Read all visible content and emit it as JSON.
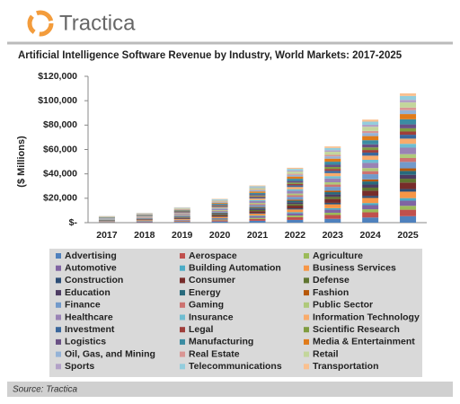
{
  "logo": "Tractica",
  "source": "Source: Tractica",
  "chart_data": {
    "type": "stacked-bar",
    "title": "Artificial Intelligence Software Revenue by Industry, World Markets: 2017-2025",
    "y_label": "($ Millions)",
    "categories": [
      "2017",
      "2018",
      "2019",
      "2020",
      "2021",
      "2022",
      "2023",
      "2024",
      "2025"
    ],
    "ylim": [
      0,
      120000
    ],
    "yticks": [
      {
        "value": 0,
        "label": "$-"
      },
      {
        "value": 20000,
        "label": "$20,000"
      },
      {
        "value": 40000,
        "label": "$40,000"
      },
      {
        "value": 60000,
        "label": "$60,000"
      },
      {
        "value": 80000,
        "label": "$80,000"
      },
      {
        "value": 100000,
        "label": "$100,000"
      },
      {
        "value": 120000,
        "label": "$120,000"
      }
    ],
    "series": [
      {
        "name": "Advertising",
        "color": "#4f81bd",
        "values": [
          275,
          405,
          630,
          975,
          1525,
          2250,
          3125,
          4225,
          5300
        ]
      },
      {
        "name": "Aerospace",
        "color": "#c0504d",
        "values": [
          275,
          405,
          630,
          975,
          1525,
          2250,
          3125,
          4225,
          5300
        ]
      },
      {
        "name": "Agriculture",
        "color": "#9bbb59",
        "values": [
          165,
          243,
          378,
          585,
          915,
          1350,
          1875,
          2535,
          3180
        ]
      },
      {
        "name": "Automotive",
        "color": "#8064a2",
        "values": [
          220,
          324,
          504,
          780,
          1220,
          1800,
          2500,
          3380,
          4240
        ]
      },
      {
        "name": "Building Automation",
        "color": "#4bacc6",
        "values": [
          110,
          162,
          252,
          390,
          610,
          900,
          1250,
          1690,
          2120
        ]
      },
      {
        "name": "Business Services",
        "color": "#f79646",
        "values": [
          275,
          405,
          630,
          975,
          1525,
          2250,
          3125,
          4225,
          5300
        ]
      },
      {
        "name": "Construction",
        "color": "#2c4d75",
        "values": [
          110,
          162,
          252,
          390,
          610,
          900,
          1250,
          1690,
          2120
        ]
      },
      {
        "name": "Consumer",
        "color": "#772c2a",
        "values": [
          275,
          405,
          630,
          975,
          1525,
          2250,
          3125,
          4225,
          5300
        ]
      },
      {
        "name": "Defense",
        "color": "#5f7530",
        "values": [
          165,
          243,
          378,
          585,
          915,
          1350,
          1875,
          2535,
          3180
        ]
      },
      {
        "name": "Education",
        "color": "#4d3b62",
        "values": [
          165,
          243,
          378,
          585,
          915,
          1350,
          1875,
          2535,
          3180
        ]
      },
      {
        "name": "Energy",
        "color": "#276a7c",
        "values": [
          165,
          243,
          378,
          585,
          915,
          1350,
          1875,
          2535,
          3180
        ]
      },
      {
        "name": "Fashion",
        "color": "#b65708",
        "values": [
          110,
          162,
          252,
          390,
          610,
          900,
          1250,
          1690,
          2120
        ]
      },
      {
        "name": "Finance",
        "color": "#729aca",
        "values": [
          275,
          405,
          630,
          975,
          1525,
          2250,
          3125,
          4225,
          5300
        ]
      },
      {
        "name": "Gaming",
        "color": "#cd7371",
        "values": [
          165,
          243,
          378,
          585,
          915,
          1350,
          1875,
          2535,
          3180
        ]
      },
      {
        "name": "Public Sector",
        "color": "#afc97a",
        "values": [
          165,
          243,
          378,
          585,
          915,
          1350,
          1875,
          2535,
          3180
        ]
      },
      {
        "name": "Healthcare",
        "color": "#9983b5",
        "values": [
          275,
          405,
          630,
          975,
          1525,
          2250,
          3125,
          4225,
          5300
        ]
      },
      {
        "name": "Insurance",
        "color": "#6fbdd1",
        "values": [
          165,
          243,
          378,
          585,
          915,
          1350,
          1875,
          2535,
          3180
        ]
      },
      {
        "name": "Information Technology",
        "color": "#f9ab6b",
        "values": [
          220,
          324,
          504,
          780,
          1220,
          1800,
          2500,
          3380,
          4240
        ]
      },
      {
        "name": "Investment",
        "color": "#3a679c",
        "values": [
          165,
          243,
          378,
          585,
          915,
          1350,
          1875,
          2535,
          3180
        ]
      },
      {
        "name": "Legal",
        "color": "#9f3e3a",
        "values": [
          138,
          203,
          315,
          488,
          763,
          1125,
          1563,
          2113,
          2650
        ]
      },
      {
        "name": "Scientific Research",
        "color": "#7f9c40",
        "values": [
          138,
          203,
          315,
          488,
          763,
          1125,
          1563,
          2113,
          2650
        ]
      },
      {
        "name": "Logistics",
        "color": "#6a5084",
        "values": [
          165,
          243,
          378,
          585,
          915,
          1350,
          1875,
          2535,
          3180
        ]
      },
      {
        "name": "Manufacturing",
        "color": "#3b8ca2",
        "values": [
          220,
          324,
          504,
          780,
          1220,
          1800,
          2500,
          3380,
          4240
        ]
      },
      {
        "name": "Media & Entertainment",
        "color": "#e07b1a",
        "values": [
          220,
          324,
          504,
          780,
          1220,
          1800,
          2500,
          3380,
          4240
        ]
      },
      {
        "name": "Oil, Gas, and Mining",
        "color": "#95b3d7",
        "values": [
          165,
          243,
          378,
          585,
          915,
          1350,
          1875,
          2535,
          3180
        ]
      },
      {
        "name": "Real Estate",
        "color": "#d99694",
        "values": [
          110,
          162,
          252,
          390,
          610,
          900,
          1250,
          1690,
          2120
        ]
      },
      {
        "name": "Retail",
        "color": "#c3d69b",
        "values": [
          220,
          324,
          504,
          780,
          1220,
          1800,
          2500,
          3380,
          4240
        ]
      },
      {
        "name": "Sports",
        "color": "#b2a1c7",
        "values": [
          110,
          162,
          252,
          390,
          610,
          900,
          1250,
          1690,
          2120
        ]
      },
      {
        "name": "Telecommunications",
        "color": "#93cddd",
        "values": [
          165,
          243,
          378,
          585,
          915,
          1350,
          1875,
          2535,
          3180
        ]
      },
      {
        "name": "Transportation",
        "color": "#fac08f",
        "values": [
          110,
          162,
          252,
          390,
          610,
          900,
          1250,
          1690,
          2120
        ]
      }
    ]
  }
}
